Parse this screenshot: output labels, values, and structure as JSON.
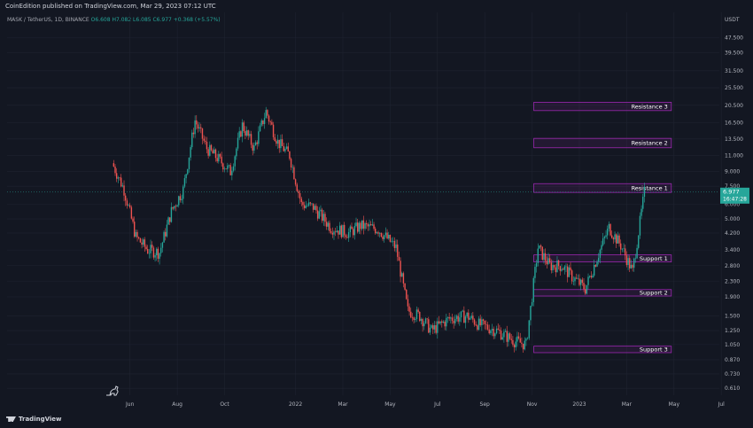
{
  "header": {
    "published": "CoinEdition published on TradingView.com, Mar 29, 2023 07:12 UTC",
    "symbol": "MASK / TetherUS, 1D, BINANCE",
    "ohlc": "O6.608 H7.082 L6.085 C6.977 +0.368 (+5.57%)"
  },
  "footer": {
    "logo_text": "TradingView"
  },
  "colors": {
    "background": "#131722",
    "grid": "#1f2330",
    "up": "#26a69a",
    "down": "#ef5350",
    "zone": "#9c27b0",
    "price_badge": "#26a69a"
  },
  "chart_data": {
    "type": "candlestick",
    "yaxis_currency": "USDT",
    "yscale": "log",
    "ylim": [
      0.56,
      65
    ],
    "y_ticks": [
      "47.500",
      "39.500",
      "31.500",
      "25.500",
      "20.500",
      "16.500",
      "13.500",
      "11.000",
      "9.000",
      "7.500",
      "6.000",
      "5.000",
      "4.200",
      "3.400",
      "2.800",
      "2.300",
      "1.900",
      "1.500",
      "1.250",
      "1.050",
      "0.870",
      "0.730",
      "0.610"
    ],
    "x_ticks": [
      "Jun",
      "Aug",
      "Oct",
      "2022",
      "Mar",
      "May",
      "Jul",
      "Sep",
      "Nov",
      "2023",
      "Mar",
      "May",
      "Jul"
    ],
    "last_price": "6.977",
    "countdown": "16:47:28",
    "zones": [
      {
        "label": "Resistance 3",
        "low": 19.2,
        "high": 21.3,
        "start": "Nov 2022",
        "end": "May 2023"
      },
      {
        "label": "Resistance 2",
        "low": 12.1,
        "high": 13.6,
        "start": "Nov 2022",
        "end": "May 2023"
      },
      {
        "label": "Resistance 1",
        "low": 6.95,
        "high": 7.75,
        "start": "Nov 2022",
        "end": "May 2023"
      },
      {
        "label": "Support 1",
        "low": 2.93,
        "high": 3.2,
        "start": "Nov 2022",
        "end": "May 2023"
      },
      {
        "label": "Support 2",
        "low": 1.92,
        "high": 2.08,
        "start": "Nov 2022",
        "end": "May 2023"
      },
      {
        "label": "Support 3",
        "low": 0.95,
        "high": 1.03,
        "start": "Nov 2022",
        "end": "May 2023"
      }
    ],
    "price_path": [
      {
        "month": "May 2021",
        "close": 10.0
      },
      {
        "month": "May 2021",
        "close": 7.2
      },
      {
        "month": "Jun 2021",
        "close": 4.0
      },
      {
        "month": "Jun 2021",
        "close": 3.4
      },
      {
        "month": "Jul 2021",
        "close": 3.3
      },
      {
        "month": "Jul 2021",
        "close": 5.5
      },
      {
        "month": "Aug 2021",
        "close": 7.2
      },
      {
        "month": "Aug 2021",
        "close": 17.0
      },
      {
        "month": "Sep 2021",
        "close": 12.0
      },
      {
        "month": "Sep 2021",
        "close": 10.5
      },
      {
        "month": "Oct 2021",
        "close": 9.0
      },
      {
        "month": "Oct 2021",
        "close": 16.0
      },
      {
        "month": "Nov 2021",
        "close": 12.0
      },
      {
        "month": "Nov 2021",
        "close": 19.0
      },
      {
        "month": "Dec 2021",
        "close": 13.0
      },
      {
        "month": "Dec 2021",
        "close": 11.0
      },
      {
        "month": "Jan 2022",
        "close": 6.0
      },
      {
        "month": "Jan 2022",
        "close": 5.8
      },
      {
        "month": "Feb 2022",
        "close": 4.5
      },
      {
        "month": "Mar 2022",
        "close": 4.2
      },
      {
        "month": "Mar 2022",
        "close": 4.6
      },
      {
        "month": "Apr 2022",
        "close": 4.4
      },
      {
        "month": "May 2022",
        "close": 3.5
      },
      {
        "month": "May 2022",
        "close": 1.6
      },
      {
        "month": "Jun 2022",
        "close": 1.5
      },
      {
        "month": "Jun 2022",
        "close": 1.25
      },
      {
        "month": "Jul 2022",
        "close": 1.45
      },
      {
        "month": "Aug 2022",
        "close": 1.5
      },
      {
        "month": "Aug 2022",
        "close": 1.35
      },
      {
        "month": "Sep 2022",
        "close": 1.25
      },
      {
        "month": "Oct 2022",
        "close": 1.1
      },
      {
        "month": "Oct 2022",
        "close": 1.05
      },
      {
        "month": "Nov 2022",
        "close": 3.5
      },
      {
        "month": "Nov 2022",
        "close": 2.8
      },
      {
        "month": "Dec 2022",
        "close": 2.8
      },
      {
        "month": "Dec 2022",
        "close": 2.4
      },
      {
        "month": "Jan 2023",
        "close": 2.1
      },
      {
        "month": "Jan 2023",
        "close": 3.1
      },
      {
        "month": "Feb 2023",
        "close": 4.5
      },
      {
        "month": "Feb 2023",
        "close": 3.6
      },
      {
        "month": "Mar 2023",
        "close": 2.6
      },
      {
        "month": "Mar 2023",
        "close": 6.977
      }
    ]
  }
}
